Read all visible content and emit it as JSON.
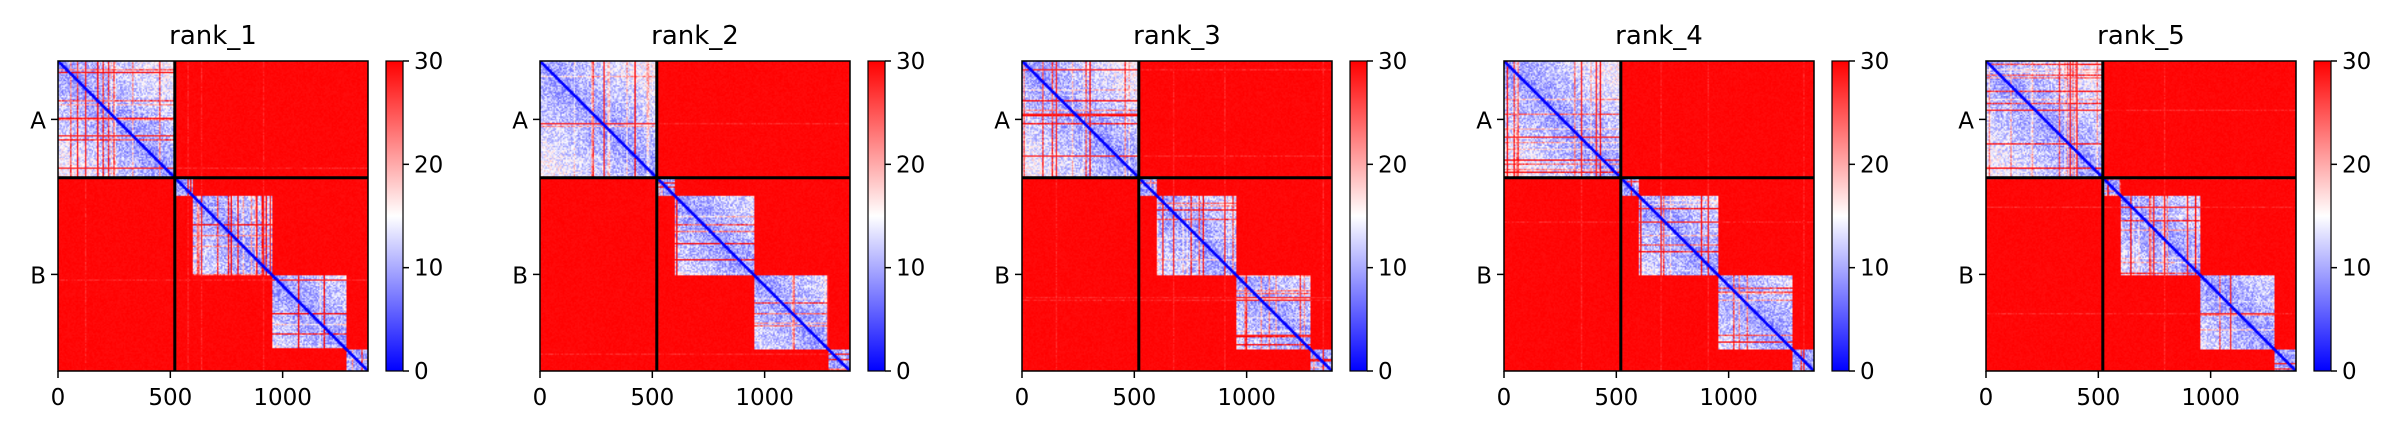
{
  "chart_data": {
    "type": "heatmap",
    "panels": [
      {
        "title": "rank_1"
      },
      {
        "title": "rank_2"
      },
      {
        "title": "rank_3"
      },
      {
        "title": "rank_4"
      },
      {
        "title": "rank_5"
      }
    ],
    "chains": [
      {
        "label": "A",
        "start": 0,
        "end": 520
      },
      {
        "label": "B",
        "start": 520,
        "end": 1380
      }
    ],
    "xlim": [
      0,
      1380
    ],
    "ylim": [
      1380,
      0
    ],
    "x_ticks": [
      0,
      500,
      1000
    ],
    "x_tick_labels": [
      "0",
      "500",
      "1000"
    ],
    "y_tick_labels": [
      "A",
      "B"
    ],
    "colorbar": {
      "min": 0,
      "max": 30,
      "ticks": [
        0,
        10,
        20,
        30
      ],
      "tick_labels": [
        "0",
        "10",
        "20",
        "30"
      ],
      "colormap": "bwr",
      "colors": {
        "low": "#0000ff",
        "mid": "#ffffff",
        "high": "#ff0000"
      }
    },
    "domains": [
      {
        "start": 0,
        "end": 520
      },
      {
        "start": 520,
        "end": 600
      },
      {
        "start": 600,
        "end": 950
      },
      {
        "start": 950,
        "end": 1280
      },
      {
        "start": 1280,
        "end": 1380
      }
    ],
    "divider_color": "#000000",
    "xlabel": "",
    "ylabel": ""
  }
}
